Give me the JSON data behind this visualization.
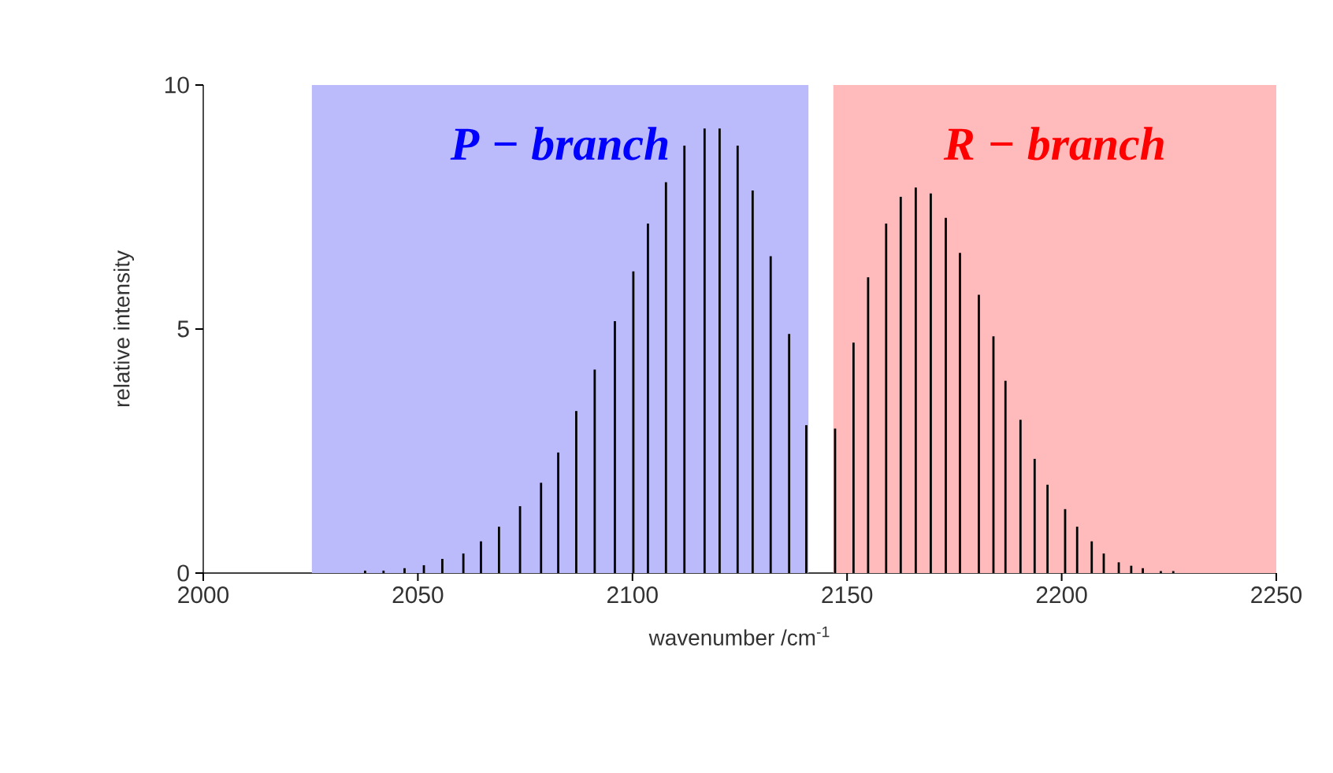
{
  "chart_data": {
    "type": "bar",
    "xlabel": "wavenumber /cm$^{-1}$",
    "ylabel": "relative intensity",
    "x": [
      2037.7,
      2042.0,
      2046.9,
      2051.4,
      2055.7,
      2060.6,
      2064.7,
      2068.9,
      2073.8,
      2078.7,
      2082.7,
      2086.9,
      2091.2,
      2095.9,
      2100.2,
      2103.6,
      2107.8,
      2112.1,
      2116.8,
      2120.3,
      2124.5,
      2128.0,
      2132.2,
      2136.5,
      2140.5,
      2147.2,
      2151.5,
      2154.9,
      2159.1,
      2162.5,
      2166.0,
      2169.5,
      2173.0,
      2176.3,
      2180.7,
      2184.1,
      2186.9,
      2190.4,
      2193.7,
      2196.7,
      2200.8,
      2203.6,
      2207.0,
      2209.8,
      2213.3,
      2216.2,
      2218.9,
      2223.1,
      2226.0
    ],
    "values": [
      0.05,
      0.05,
      0.1,
      0.16,
      0.29,
      0.4,
      0.65,
      0.95,
      1.37,
      1.85,
      2.47,
      3.32,
      4.17,
      5.16,
      6.18,
      7.16,
      8.01,
      8.76,
      9.11,
      9.11,
      8.76,
      7.84,
      6.49,
      4.9,
      3.03,
      2.96,
      4.72,
      6.06,
      7.16,
      7.71,
      7.9,
      7.78,
      7.28,
      6.56,
      5.7,
      4.85,
      3.94,
      3.14,
      2.34,
      1.81,
      1.31,
      0.95,
      0.65,
      0.4,
      0.22,
      0.15,
      0.1,
      0.04,
      0.04
    ],
    "color": "#000000",
    "xlim": [
      2000,
      2250
    ],
    "ylim": [
      0,
      10
    ],
    "xticks": [
      2000,
      2050,
      2100,
      2150,
      2200,
      2250
    ],
    "yticks": [
      0,
      5,
      10
    ],
    "bands": [
      {
        "axis": "x",
        "from": 2025.3,
        "to": 2141,
        "label": "P − branch",
        "color": "#bbbbfb"
      },
      {
        "axis": "x",
        "from": 2146.8,
        "to": 2250,
        "label": "R − branch",
        "color": "#ffbbbb"
      }
    ],
    "grid": false
  }
}
